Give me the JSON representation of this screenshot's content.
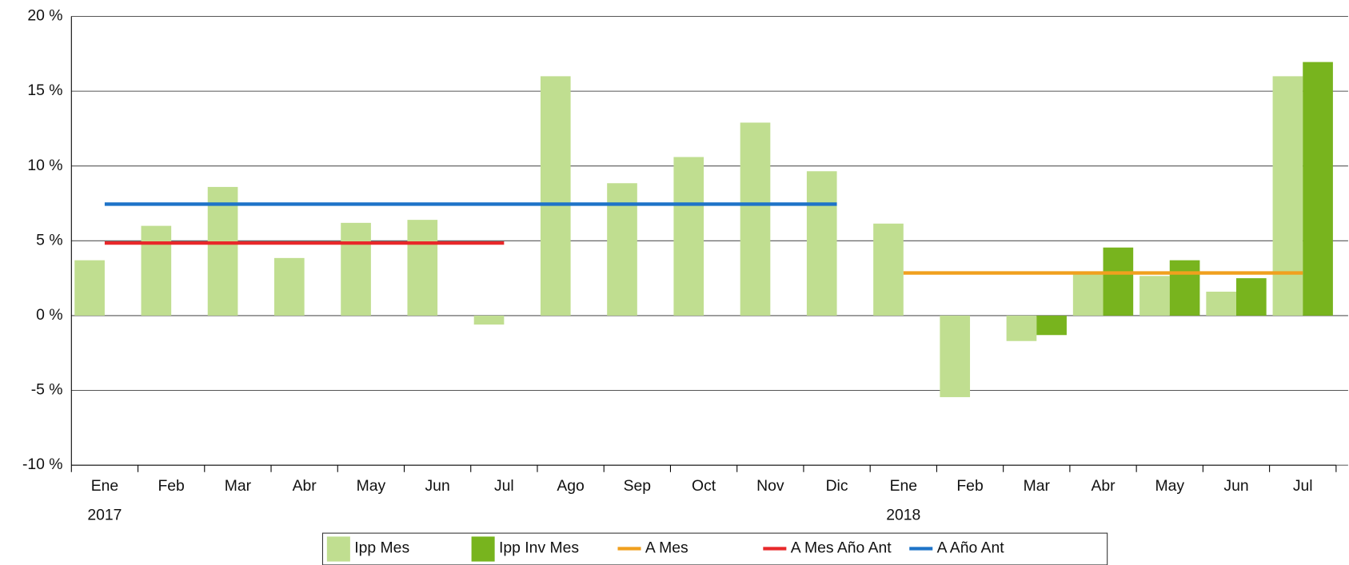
{
  "chart_data": {
    "type": "bar",
    "categories": [
      "Ene",
      "Feb",
      "Mar",
      "Abr",
      "May",
      "Jun",
      "Jul",
      "Ago",
      "Sep",
      "Oct",
      "Nov",
      "Dic",
      "Ene",
      "Feb",
      "Mar",
      "Abr",
      "May",
      "Jun",
      "Jul"
    ],
    "x_groups": [
      {
        "label": "2017",
        "count": 12
      },
      {
        "label": "2018",
        "count": 7
      }
    ],
    "ylim": [
      -10,
      20
    ],
    "yticks": [
      {
        "value": -10,
        "label": "-10 %"
      },
      {
        "value": -5,
        "label": "-5 %"
      },
      {
        "value": 0,
        "label": "0 %"
      },
      {
        "value": 5,
        "label": "5 %"
      },
      {
        "value": 10,
        "label": "10 %"
      },
      {
        "value": 15,
        "label": "15 %"
      },
      {
        "value": 20,
        "label": "20 %"
      }
    ],
    "grid": true,
    "legend": "bottom",
    "series": [
      {
        "name": "Ipp Mes",
        "type": "bar",
        "color": "#c0de90",
        "values": [
          3.7,
          6.0,
          8.6,
          3.85,
          6.2,
          6.4,
          -0.6,
          16.0,
          8.85,
          10.6,
          12.9,
          9.65,
          6.15,
          -5.45,
          -1.7,
          2.8,
          2.65,
          1.6,
          16.0
        ]
      },
      {
        "name": "Ipp Inv Mes",
        "type": "bar",
        "color": "#78b41e",
        "values": [
          null,
          null,
          null,
          null,
          null,
          null,
          null,
          null,
          null,
          null,
          null,
          null,
          null,
          null,
          -1.3,
          4.55,
          3.7,
          2.5,
          16.95
        ]
      },
      {
        "name": "A Mes",
        "type": "line",
        "color": "#f0a01e",
        "values": [
          null,
          null,
          null,
          null,
          null,
          null,
          null,
          null,
          null,
          null,
          null,
          null,
          2.85,
          2.85,
          2.85,
          2.85,
          2.85,
          2.85,
          2.85
        ]
      },
      {
        "name": "A Mes Año Ant",
        "type": "line",
        "color": "#e8282a",
        "values": [
          4.85,
          4.85,
          4.85,
          4.85,
          4.85,
          4.85,
          4.85,
          null,
          null,
          null,
          null,
          null,
          null,
          null,
          null,
          null,
          null,
          null,
          null
        ]
      },
      {
        "name": "A Año Ant",
        "type": "line",
        "color": "#1e73c8",
        "values": [
          7.45,
          7.45,
          7.45,
          7.45,
          7.45,
          7.45,
          7.45,
          7.45,
          7.45,
          7.45,
          7.45,
          7.45,
          null,
          null,
          null,
          null,
          null,
          null,
          null
        ]
      }
    ]
  }
}
